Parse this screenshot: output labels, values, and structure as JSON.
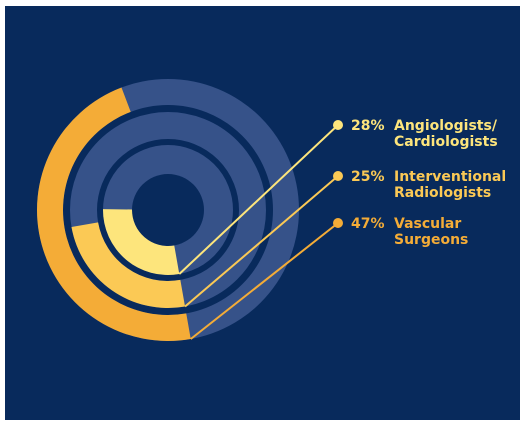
{
  "colors": {
    "background": "#082a5c",
    "track": "#365289",
    "hole": "#082a5c",
    "leader": "#fbd969"
  },
  "chart_data": {
    "type": "radial-bar",
    "title": "",
    "series": [
      {
        "name": "Angiologists/ Cardiologists",
        "percent": 28,
        "value_label": "28%",
        "label_lines": [
          "Angiologists/",
          "Cardiologists"
        ],
        "color": "#fde57c"
      },
      {
        "name": "Interventional Radiologists",
        "percent": 25,
        "value_label": "25%",
        "label_lines": [
          "Interventional",
          "Radiologists"
        ],
        "color": "#fbc955"
      },
      {
        "name": "Vascular Surgeons",
        "percent": 47,
        "value_label": "47%",
        "label_lines": [
          "Vascular",
          "Surgeons"
        ],
        "color": "#f4ac37"
      }
    ]
  }
}
